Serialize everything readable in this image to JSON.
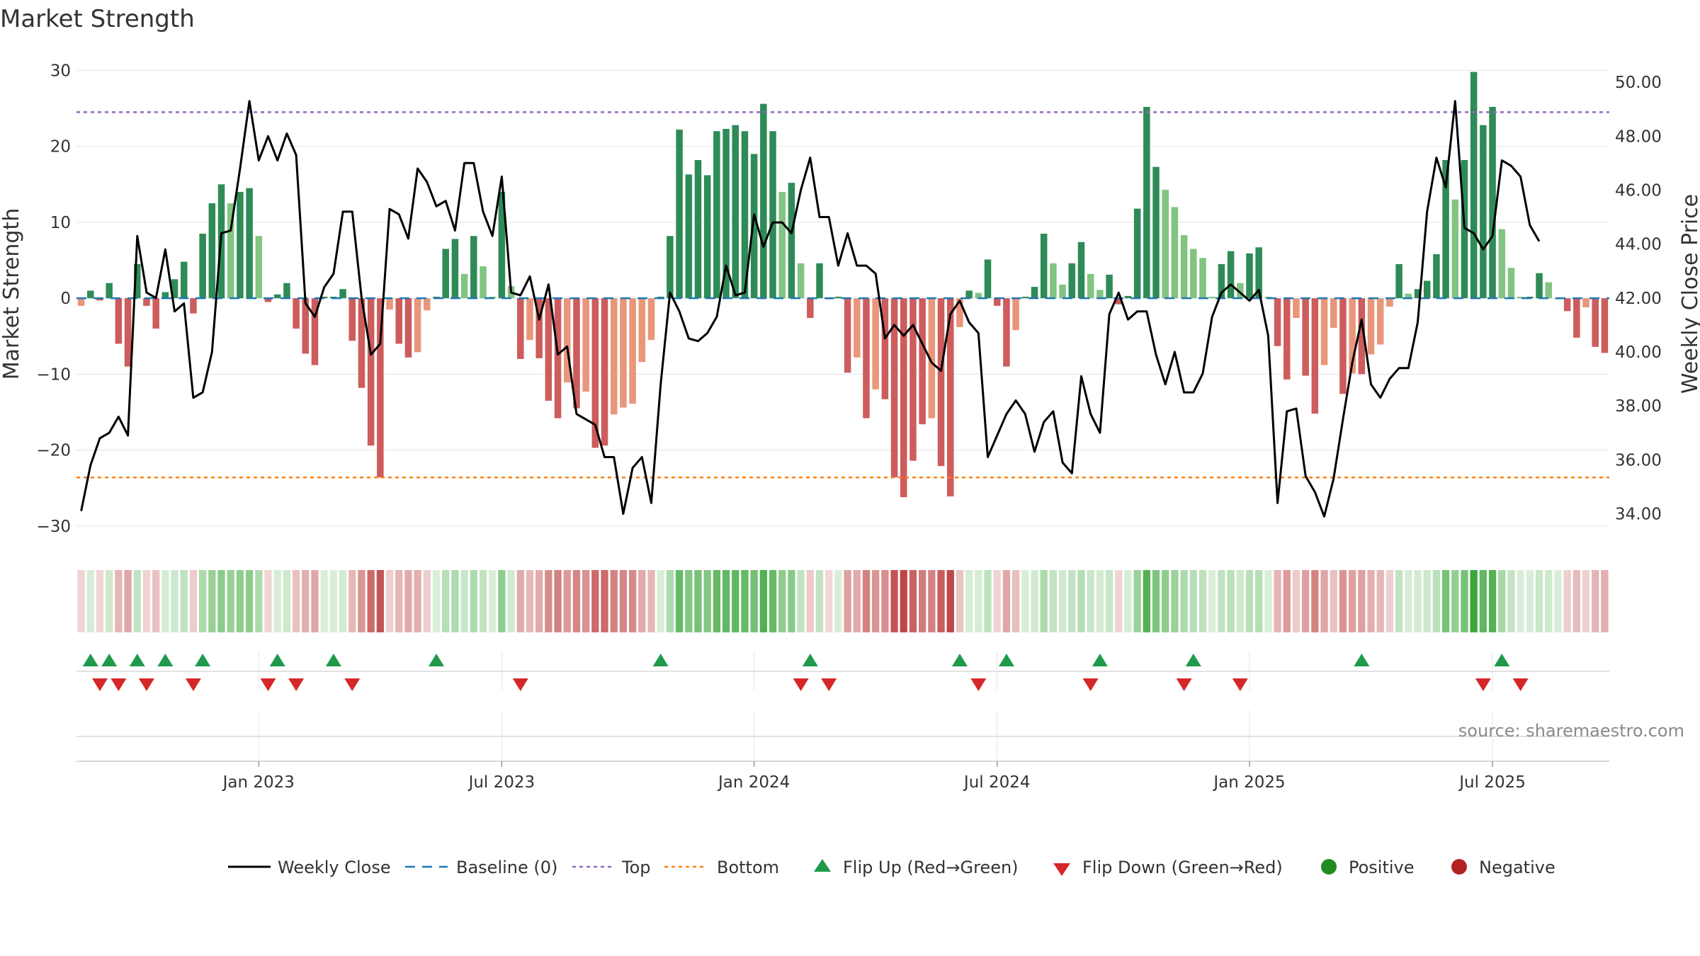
{
  "chart_data": {
    "type": "bar",
    "title": "Market Strength",
    "source": "source: sharemaestro.com",
    "ylabel_left": "Market Strength",
    "ylabel_right": "Weekly Close Price",
    "ylim_left": [
      -33,
      32
    ],
    "ylim_right": [
      32.7,
      51.0
    ],
    "yticks_left": [
      30,
      20,
      10,
      0,
      -10,
      -20,
      -30
    ],
    "yticks_left_labels": [
      "30",
      "20",
      "10",
      "0",
      "−10",
      "−20",
      "−30"
    ],
    "yticks_right": [
      50,
      48,
      46,
      44,
      42,
      40,
      38,
      36,
      34
    ],
    "yticks_right_labels": [
      "50.00",
      "48.00",
      "46.00",
      "44.00",
      "42.00",
      "40.00",
      "38.00",
      "36.00",
      "34.00"
    ],
    "x_ticks": [
      "Jan 2023",
      "Jul 2023",
      "Jan 2024",
      "Jul 2024",
      "Jan 2025",
      "Jul 2025"
    ],
    "x_tick_week_index": [
      19,
      45,
      72,
      98,
      125,
      151
    ],
    "top_level": 24.5,
    "bottom_level": -23.6,
    "strength": [
      -1,
      1,
      -0.3,
      2,
      -6,
      -9,
      4.5,
      -1,
      -4,
      0.8,
      2.5,
      4.8,
      -2,
      8.5,
      12.5,
      15,
      12.5,
      14,
      14.5,
      8.2,
      -0.5,
      0.5,
      2,
      -4,
      -7.3,
      -8.8,
      0.2,
      0.2,
      1.2,
      -5.6,
      -11.8,
      -19.4,
      -23.6,
      -1.5,
      -6,
      -7.8,
      -7.1,
      -1.6,
      0.2,
      6.5,
      7.8,
      3.2,
      8.2,
      4.2,
      0.2,
      14,
      1.6,
      -8,
      -5.5,
      -7.9,
      -13.5,
      -15.8,
      -11.1,
      -14.5,
      -12.3,
      -19.7,
      -19.4,
      -15.3,
      -14.4,
      -13.9,
      -8.4,
      -5.5,
      0.2,
      8.2,
      22.2,
      16.3,
      18.2,
      16.2,
      22,
      22.3,
      22.8,
      22,
      19,
      25.6,
      22,
      14,
      15.2,
      4.6,
      -2.6,
      4.6,
      -0.1,
      0.2,
      -9.8,
      -7.8,
      -15.8,
      -12,
      -13.3,
      -23.6,
      -26.2,
      -21.4,
      -16.6,
      -15.8,
      -22.1,
      -26.1,
      -3.8,
      1,
      0.7,
      5.1,
      -1,
      -9,
      -4.2,
      0.2,
      1.5,
      8.5,
      4.6,
      1.8,
      4.6,
      7.4,
      3.2,
      1.1,
      3.1,
      -0.8,
      0.3,
      11.8,
      25.2,
      17.3,
      14.3,
      12,
      8.3,
      6.5,
      5.3,
      0.2,
      4.5,
      6.2,
      2,
      5.9,
      6.7,
      0.2,
      -6.3,
      -10.7,
      -2.6,
      -10.2,
      -15.2,
      -8.8,
      -3.9,
      -12.6,
      -9.9,
      -10,
      -7.4,
      -6.1,
      -1.1,
      4.5,
      0.6,
      1.2,
      2.3,
      5.8,
      18.2,
      13,
      18.2,
      29.8,
      22.8,
      25.2,
      9.1,
      4,
      0.2,
      0.2,
      3.3,
      2.1,
      0,
      -1.7,
      -5.2,
      -1.2,
      -6.4,
      -7.2
    ],
    "close": [
      34.1,
      35.8,
      36.8,
      37,
      37.6,
      36.9,
      44.3,
      42.2,
      42,
      43.8,
      41.5,
      41.8,
      38.3,
      38.5,
      40,
      44.4,
      44.5,
      46.8,
      49.3,
      47.1,
      48,
      47.1,
      48.1,
      47.3,
      41.8,
      41.3,
      42.4,
      42.9,
      45.2,
      45.2,
      42,
      39.9,
      40.3,
      45.3,
      45.1,
      44.2,
      46.8,
      46.3,
      45.4,
      45.6,
      44.5,
      47,
      47,
      45.2,
      44.3,
      46.5,
      42.2,
      42.1,
      42.8,
      41.2,
      42.5,
      39.9,
      40.2,
      37.7,
      37.5,
      37.3,
      36.1,
      36.1,
      34,
      35.7,
      36.1,
      34.4,
      38.8,
      42.2,
      41.5,
      40.5,
      40.4,
      40.7,
      41.3,
      43.2,
      42.1,
      42.2,
      45.1,
      43.9,
      44.8,
      44.8,
      44.4,
      46,
      47.2,
      45,
      45,
      43.2,
      44.4,
      43.2,
      43.2,
      42.9,
      40.5,
      41,
      40.6,
      41,
      40.3,
      39.6,
      39.3,
      41.4,
      41.9,
      41.1,
      40.7,
      36.1,
      36.9,
      37.7,
      38.2,
      37.7,
      36.3,
      37.4,
      37.8,
      35.9,
      35.5,
      39.1,
      37.7,
      37,
      41.4,
      42.2,
      41.2,
      41.5,
      41.5,
      39.9,
      38.8,
      40,
      38.5,
      38.5,
      39.2,
      41.3,
      42.2,
      42.5,
      42.2,
      41.9,
      42.3,
      40.6,
      34.4,
      37.8,
      37.9,
      35.4,
      34.8,
      33.9,
      35.3,
      37.5,
      39.6,
      41.2,
      38.8,
      38.3,
      39,
      39.4,
      39.4,
      41.1,
      45.2,
      47.2,
      46.1,
      49.3,
      44.6,
      44.4,
      43.8,
      44.3,
      47.1,
      46.9,
      46.5,
      44.7,
      44.1
    ],
    "flip_up_weeks": [
      1,
      3,
      6,
      9,
      13,
      21,
      27,
      38,
      62,
      78,
      94,
      99,
      109,
      119,
      137,
      152
    ],
    "flip_down_weeks": [
      2,
      4,
      7,
      12,
      20,
      23,
      29,
      47,
      77,
      80,
      96,
      108,
      118,
      124,
      150,
      154
    ],
    "series": [
      {
        "name": "Weekly Close",
        "color": "#000000"
      },
      {
        "name": "Baseline (0)",
        "color": "#1f77b4"
      },
      {
        "name": "Top",
        "color": "#9467bd"
      },
      {
        "name": "Bottom",
        "color": "#ff7f0e"
      }
    ],
    "legend": {
      "placement": "bottom-center",
      "items": [
        {
          "label": "Weekly Close",
          "kind": "line-solid",
          "color": "#000000"
        },
        {
          "label": "Baseline (0)",
          "kind": "line-dashed",
          "color": "#1f77b4"
        },
        {
          "label": "Top",
          "kind": "line-dotted",
          "color": "#9467bd"
        },
        {
          "label": "Bottom",
          "kind": "line-dotted",
          "color": "#ff7f0e"
        },
        {
          "label": "Flip Up (Red→Green)",
          "kind": "triangle-up",
          "color": "#1f9a48"
        },
        {
          "label": "Flip Down (Green→Red)",
          "kind": "triangle-down",
          "color": "#d62728"
        },
        {
          "label": "Positive",
          "kind": "dot",
          "color": "#228b22"
        },
        {
          "label": "Negative",
          "kind": "dot",
          "color": "#b22222"
        }
      ]
    },
    "colors": {
      "pos_strong": "#2e8b57",
      "pos_weak": "#82c482",
      "neg_strong": "#cd5c5c",
      "neg_weak": "#e9967a",
      "grid": "#e8e8e8"
    }
  }
}
